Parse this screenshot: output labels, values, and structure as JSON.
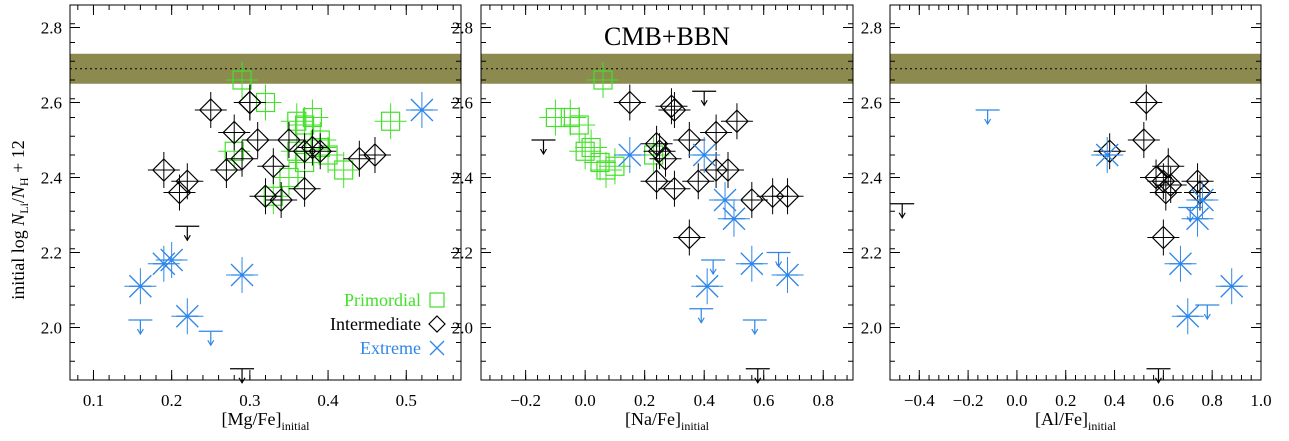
{
  "chart_data": [
    {
      "type": "scatter",
      "title": "",
      "xlabel": "[Mg/Fe]",
      "xlabel_sub": "initial",
      "ylabel": "initial log N",
      "ylabel_parts": [
        "initial log ",
        "N",
        "Li",
        "/",
        "N",
        "H",
        " + 12"
      ],
      "xlim": [
        0.07,
        0.57
      ],
      "ylim": [
        1.86,
        2.86
      ],
      "xticks": [
        0.1,
        0.2,
        0.3,
        0.4,
        0.5
      ],
      "xticklabels": [
        "0.1",
        "0.2",
        "0.3",
        "0.4",
        "0.5"
      ],
      "yticks": [
        2.0,
        2.2,
        2.4,
        2.6,
        2.8
      ],
      "yticklabels": [
        "2.0",
        "2.2",
        "2.4",
        "2.6",
        "2.8"
      ],
      "band": {
        "ymin": 2.65,
        "ymax": 2.73,
        "mid": 2.69,
        "color": "#8c8a4e"
      },
      "legend": {
        "placement": "bottom-right",
        "entries": [
          {
            "name": "Primordial",
            "marker": "square",
            "color": "#44e02a"
          },
          {
            "name": "Intermediate",
            "marker": "diamond",
            "color": "#000000"
          },
          {
            "name": "Extreme",
            "marker": "cross",
            "color": "#2f86e8"
          }
        ]
      },
      "series": [
        {
          "name": "Primordial",
          "marker": "square",
          "color": "#44e02a",
          "x": [
            0.29,
            0.32,
            0.36,
            0.37,
            0.38,
            0.39,
            0.39,
            0.36,
            0.4,
            0.35,
            0.37,
            0.28,
            0.42,
            0.33,
            0.48
          ],
          "y": [
            2.66,
            2.6,
            2.55,
            2.54,
            2.56,
            2.5,
            2.48,
            2.47,
            2.46,
            2.4,
            2.44,
            2.47,
            2.42,
            2.35,
            2.55
          ]
        },
        {
          "name": "Intermediate",
          "marker": "diamond",
          "color": "#000000",
          "x": [
            0.19,
            0.21,
            0.22,
            0.25,
            0.27,
            0.28,
            0.29,
            0.3,
            0.3,
            0.31,
            0.32,
            0.33,
            0.34,
            0.35,
            0.37,
            0.38,
            0.39,
            0.44,
            0.46,
            0.37
          ],
          "y": [
            2.42,
            2.36,
            2.39,
            2.58,
            2.42,
            2.52,
            2.45,
            2.6,
            2.6,
            2.5,
            2.35,
            2.43,
            2.34,
            2.5,
            2.37,
            2.48,
            2.47,
            2.45,
            2.46,
            2.47
          ]
        },
        {
          "name": "Extreme",
          "marker": "cross",
          "color": "#2f86e8",
          "x": [
            0.16,
            0.19,
            0.2,
            0.22,
            0.29,
            0.52
          ],
          "y": [
            2.11,
            2.17,
            2.18,
            2.03,
            2.14,
            2.58
          ]
        }
      ],
      "upper_limits": [
        {
          "x": 0.16,
          "y": 2.02,
          "color": "#2f86e8"
        },
        {
          "x": 0.25,
          "y": 1.99,
          "color": "#2f86e8"
        },
        {
          "x": 0.22,
          "y": 2.27,
          "color": "#000000"
        },
        {
          "x": 0.29,
          "y": 1.89,
          "color": "#000000"
        }
      ]
    },
    {
      "type": "scatter",
      "title": "CMB+BBN",
      "xlabel": "[Na/Fe]",
      "xlabel_sub": "initial",
      "xlim": [
        -0.35,
        0.9
      ],
      "ylim": [
        1.86,
        2.86
      ],
      "xticks": [
        -0.2,
        0.0,
        0.2,
        0.4,
        0.6,
        0.8
      ],
      "xticklabels": [
        "−0.2",
        "0.0",
        "0.2",
        "0.4",
        "0.6",
        "0.8"
      ],
      "yticks": [
        2.0,
        2.2,
        2.4,
        2.6,
        2.8
      ],
      "yticklabels": [
        "2.0",
        "2.2",
        "2.4",
        "2.6",
        "2.8"
      ],
      "band": {
        "ymin": 2.65,
        "ymax": 2.73,
        "mid": 2.69,
        "color": "#8c8a4e"
      },
      "series": [
        {
          "name": "Primordial",
          "marker": "square",
          "color": "#44e02a",
          "x": [
            -0.1,
            -0.05,
            -0.02,
            0.06,
            0.02,
            0.05,
            0.07,
            0.1,
            0.0,
            0.23
          ],
          "y": [
            2.56,
            2.56,
            2.54,
            2.66,
            2.48,
            2.44,
            2.42,
            2.43,
            2.47,
            2.46
          ]
        },
        {
          "name": "Intermediate",
          "marker": "diamond",
          "color": "#000000",
          "x": [
            0.15,
            0.29,
            0.3,
            0.24,
            0.27,
            0.24,
            0.3,
            0.35,
            0.35,
            0.44,
            0.44,
            0.38,
            0.48,
            0.51,
            0.56,
            0.63,
            0.68,
            0.25
          ],
          "y": [
            2.6,
            2.59,
            2.58,
            2.49,
            2.45,
            2.39,
            2.37,
            2.5,
            2.24,
            2.52,
            2.42,
            2.39,
            2.42,
            2.55,
            2.34,
            2.35,
            2.35,
            2.47
          ]
        },
        {
          "name": "Extreme",
          "marker": "cross",
          "color": "#2f86e8",
          "x": [
            0.15,
            0.4,
            0.47,
            0.5,
            0.56,
            0.68,
            0.41
          ],
          "y": [
            2.46,
            2.46,
            2.34,
            2.29,
            2.17,
            2.14,
            2.11
          ]
        }
      ],
      "upper_limits": [
        {
          "x": 0.57,
          "y": 2.02,
          "color": "#2f86e8"
        },
        {
          "x": 0.65,
          "y": 2.2,
          "color": "#2f86e8"
        },
        {
          "x": 0.39,
          "y": 2.05,
          "color": "#2f86e8"
        },
        {
          "x": 0.43,
          "y": 2.18,
          "color": "#2f86e8"
        },
        {
          "x": -0.14,
          "y": 2.5,
          "color": "#000000"
        },
        {
          "x": 0.58,
          "y": 1.89,
          "color": "#000000"
        },
        {
          "x": 0.4,
          "y": 2.63,
          "color": "#000000"
        }
      ]
    },
    {
      "type": "scatter",
      "title": "",
      "xlabel": "[Al/Fe]",
      "xlabel_sub": "initial",
      "xlim": [
        -0.52,
        1.0
      ],
      "ylim": [
        1.86,
        2.86
      ],
      "xticks": [
        -0.4,
        -0.2,
        0.0,
        0.2,
        0.4,
        0.6,
        0.8,
        1.0
      ],
      "xticklabels": [
        "−0.4",
        "−0.2",
        "0.0",
        "0.2",
        "0.4",
        "0.6",
        "0.8",
        "1.0"
      ],
      "yticks": [
        2.0,
        2.2,
        2.4,
        2.6,
        2.8
      ],
      "yticklabels": [
        "2.0",
        "2.2",
        "2.4",
        "2.6",
        "2.8"
      ],
      "band": {
        "ymin": 2.65,
        "ymax": 2.73,
        "mid": 2.69,
        "color": "#8c8a4e"
      },
      "series": [
        {
          "name": "Intermediate",
          "marker": "diamond",
          "color": "#000000",
          "x": [
            0.38,
            0.52,
            0.53,
            0.57,
            0.6,
            0.62,
            0.6,
            0.63,
            0.74,
            0.75,
            0.61
          ],
          "y": [
            2.47,
            2.5,
            2.6,
            2.4,
            2.39,
            2.43,
            2.24,
            2.38,
            2.39,
            2.36,
            2.36
          ]
        },
        {
          "name": "Extreme",
          "marker": "cross",
          "color": "#2f86e8",
          "x": [
            0.37,
            0.67,
            0.7,
            0.74,
            0.76,
            0.88
          ],
          "y": [
            2.46,
            2.17,
            2.03,
            2.29,
            2.34,
            2.11
          ]
        }
      ],
      "upper_limits": [
        {
          "x": 0.71,
          "y": 2.32,
          "color": "#2f86e8"
        },
        {
          "x": 0.78,
          "y": 2.06,
          "color": "#2f86e8"
        },
        {
          "x": -0.12,
          "y": 2.58,
          "color": "#2f86e8"
        },
        {
          "x": 0.58,
          "y": 1.89,
          "color": "#000000"
        },
        {
          "x": -0.47,
          "y": 2.33,
          "color": "#000000"
        }
      ]
    }
  ]
}
